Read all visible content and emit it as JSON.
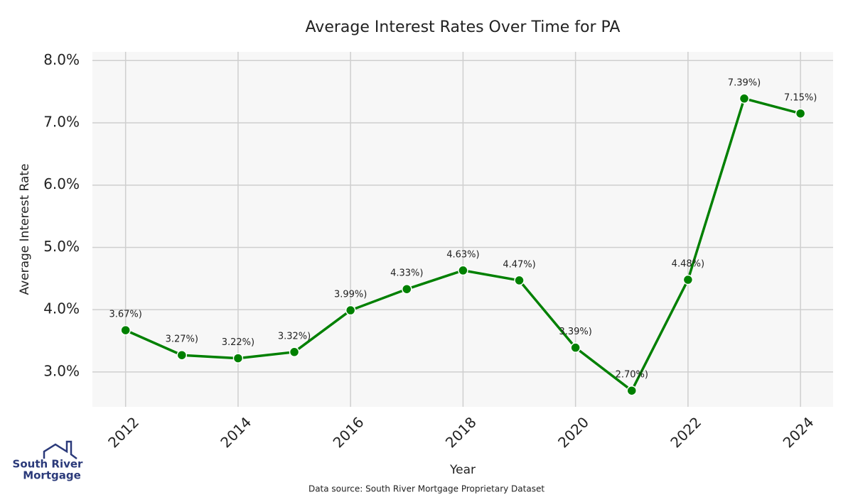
{
  "chart_data": {
    "type": "line",
    "title": "Average Interest Rates Over Time for PA",
    "xlabel": "Year",
    "ylabel": "Average Interest Rate",
    "note": "Data source: South River Mortgage Proprietary Dataset",
    "logo": [
      "South River",
      "Mortgage"
    ],
    "x": [
      2012,
      2013,
      2014,
      2015,
      2016,
      2017,
      2018,
      2019,
      2020,
      2021,
      2022,
      2023,
      2024
    ],
    "series": [
      {
        "name": "Average Interest Rate",
        "color": "#008000",
        "values": [
          3.67,
          3.27,
          3.22,
          3.32,
          3.99,
          4.33,
          4.63,
          4.47,
          3.39,
          2.7,
          4.48,
          7.39,
          7.15
        ],
        "value_labels": [
          "3.67%)",
          "3.27%)",
          "3.22%)",
          "3.32%)",
          "3.99%)",
          "4.33%)",
          "4.63%)",
          "4.47%)",
          "3.39%)",
          "2.70%)",
          "4.48%)",
          "7.39%)",
          "7.15%)"
        ]
      }
    ],
    "xlim": [
      2011.41,
      2024.58
    ],
    "xticks": [
      2012,
      2014,
      2016,
      2018,
      2020,
      2022,
      2024
    ],
    "ylim": [
      2.44,
      8.14
    ],
    "yticks": [
      {
        "value": 3,
        "label": "3.0%"
      },
      {
        "value": 4,
        "label": "4.0%"
      },
      {
        "value": 5,
        "label": "5.0%"
      },
      {
        "value": 6,
        "label": "6.0%"
      },
      {
        "value": 7,
        "label": "7.0%"
      },
      {
        "value": 8,
        "label": "8.0%"
      }
    ],
    "grid": true
  }
}
